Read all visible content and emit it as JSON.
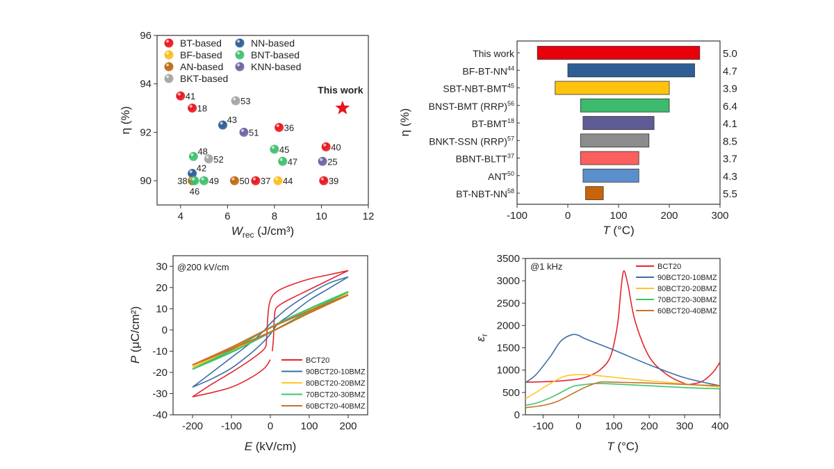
{
  "chart_data": [
    {
      "type": "scatter",
      "ylabel": "η (%)",
      "xlabel": {
        "symbol": "W",
        "sub": "rec",
        "unit": " (J/cm³)"
      },
      "xlim": [
        3,
        12
      ],
      "ylim": [
        89,
        96
      ],
      "xticks": [
        4,
        6,
        8,
        10,
        12
      ],
      "yticks": [
        90,
        92,
        94,
        96
      ],
      "legend_placement": "top-left",
      "series": [
        {
          "key": "BT",
          "name": "BT-based",
          "color": "#e8131b"
        },
        {
          "key": "NN",
          "name": "NN-based",
          "color": "#2c5a94"
        },
        {
          "key": "BF",
          "name": "BF-based",
          "color": "#fbbd1a"
        },
        {
          "key": "BNT",
          "name": "BNT-based",
          "color": "#3cbf6c"
        },
        {
          "key": "AN",
          "name": "AN-based",
          "color": "#c0650f"
        },
        {
          "key": "KNN",
          "name": "KNN-based",
          "color": "#6a62a0"
        },
        {
          "key": "BKT",
          "name": "BKT-based",
          "color": "#a3a3a3"
        }
      ],
      "points": [
        {
          "x": 4.0,
          "y": 93.5,
          "label": "41",
          "series": "BT",
          "label_pos": "right"
        },
        {
          "x": 4.5,
          "y": 93.0,
          "label": "18",
          "series": "BT",
          "label_pos": "right"
        },
        {
          "x": 6.35,
          "y": 93.3,
          "label": "53",
          "series": "BKT",
          "label_pos": "right"
        },
        {
          "x": 5.8,
          "y": 92.3,
          "label": "43",
          "series": "NN",
          "label_pos": "upper-right"
        },
        {
          "x": 6.7,
          "y": 92.0,
          "label": "51",
          "series": "KNN",
          "label_pos": "right"
        },
        {
          "x": 8.2,
          "y": 92.2,
          "label": "36",
          "series": "BT",
          "label_pos": "right"
        },
        {
          "x": 4.55,
          "y": 91.0,
          "label": "48",
          "series": "BNT",
          "label_pos": "upper-right"
        },
        {
          "x": 5.2,
          "y": 90.9,
          "label": "52",
          "series": "BKT",
          "label_pos": "right"
        },
        {
          "x": 8.0,
          "y": 91.3,
          "label": "45",
          "series": "BNT",
          "label_pos": "right"
        },
        {
          "x": 8.35,
          "y": 90.8,
          "label": "47",
          "series": "BNT",
          "label_pos": "right"
        },
        {
          "x": 10.2,
          "y": 91.4,
          "label": "40",
          "series": "BT",
          "label_pos": "right"
        },
        {
          "x": 10.05,
          "y": 90.8,
          "label": "25",
          "series": "KNN",
          "label_pos": "right"
        },
        {
          "x": 4.5,
          "y": 90.3,
          "label": "42",
          "series": "NN",
          "label_pos": "upper-right"
        },
        {
          "x": 4.5,
          "y": 90.0,
          "label": "38",
          "series": "AN",
          "label_pos": "left"
        },
        {
          "x": 4.6,
          "y": 90.0,
          "label": "46",
          "series": "BNT",
          "label_pos": "below"
        },
        {
          "x": 5.0,
          "y": 90.0,
          "label": "49",
          "series": "BNT",
          "label_pos": "right"
        },
        {
          "x": 6.3,
          "y": 90.0,
          "label": "50",
          "series": "AN",
          "label_pos": "right"
        },
        {
          "x": 7.2,
          "y": 90.0,
          "label": "37",
          "series": "BT",
          "label_pos": "right"
        },
        {
          "x": 8.15,
          "y": 90.0,
          "label": "44",
          "series": "BF",
          "label_pos": "right"
        },
        {
          "x": 10.1,
          "y": 90.0,
          "label": "39",
          "series": "BT",
          "label_pos": "right"
        }
      ],
      "highlight": {
        "x": 10.9,
        "y": 93.0,
        "label": "This work",
        "marker": "star",
        "color": "#e8131b"
      }
    },
    {
      "type": "bar",
      "orientation": "horizontal-range",
      "ylabel": "η (%)",
      "xlabel": {
        "symbol": "T",
        "unit": " (°C)"
      },
      "xlim": [
        -100,
        300
      ],
      "xticks": [
        -100,
        0,
        100,
        200,
        300
      ],
      "bars": [
        {
          "name": "This work",
          "ref": "",
          "start": -60,
          "end": 260,
          "value": "5.0",
          "color": "#e8000b"
        },
        {
          "name": "BF-BT-NN",
          "ref": "44",
          "start": 0,
          "end": 250,
          "value": "4.7",
          "color": "#2f5e94"
        },
        {
          "name": "SBT-NBT-BMT",
          "ref": "45",
          "start": -25,
          "end": 200,
          "value": "3.9",
          "color": "#ffc20e"
        },
        {
          "name": "BNST-BMT (RRP)",
          "ref": "56",
          "start": 25,
          "end": 200,
          "value": "6.4",
          "color": "#3cba6e"
        },
        {
          "name": "BT-BMT",
          "ref": "18",
          "start": 30,
          "end": 170,
          "value": "4.1",
          "color": "#5f5b94"
        },
        {
          "name": "BNKT-SSN (RRP)",
          "ref": "57",
          "start": 25,
          "end": 160,
          "value": "8.5",
          "color": "#8c8c8c"
        },
        {
          "name": "BBNT-BLTT",
          "ref": "37",
          "start": 25,
          "end": 140,
          "value": "3.7",
          "color": "#f9605f"
        },
        {
          "name": "ANT",
          "ref": "50",
          "start": 30,
          "end": 140,
          "value": "4.3",
          "color": "#5b8fcc"
        },
        {
          "name": "BT-NBT-NN",
          "ref": "58",
          "start": 35,
          "end": 70,
          "value": "5.5",
          "color": "#c8640a"
        }
      ]
    },
    {
      "type": "line",
      "annotation": "@200 kV/cm",
      "ylabel": {
        "symbol": "P",
        "unit": " (μC/cm²)"
      },
      "xlabel": {
        "symbol": "E",
        "unit": " (kV/cm)"
      },
      "xlim": [
        -250,
        250
      ],
      "ylim": [
        -40,
        35
      ],
      "xticks": [
        -200,
        -100,
        0,
        100,
        200
      ],
      "yticks": [
        -40,
        -30,
        -20,
        -10,
        0,
        10,
        20,
        30
      ],
      "legend_placement": "bottom-right",
      "series": [
        {
          "name": "BCT20",
          "color": "#e3242b",
          "branches": [
            [
              [
                200,
                28
              ],
              [
                150,
                26
              ],
              [
                100,
                24
              ],
              [
                50,
                21
              ],
              [
                20,
                18.5
              ],
              [
                5,
                16
              ],
              [
                -3,
                12
              ],
              [
                -7,
                5
              ],
              [
                -10,
                -5
              ],
              [
                -16,
                -9
              ],
              [
                -50,
                -14
              ],
              [
                -100,
                -20
              ],
              [
                -150,
                -25.5
              ],
              [
                -200,
                -31.5
              ]
            ],
            [
              [
                -200,
                -31.5
              ],
              [
                -150,
                -29.5
              ],
              [
                -100,
                -27
              ],
              [
                -50,
                -22.5
              ],
              [
                -15,
                -18
              ],
              [
                0,
                -14
              ]
            ],
            [
              [
                5,
                -10
              ],
              [
                8,
                -4
              ],
              [
                10,
                5
              ],
              [
                14,
                10
              ],
              [
                30,
                12.5
              ],
              [
                50,
                14.5
              ],
              [
                100,
                19
              ],
              [
                150,
                23.5
              ],
              [
                200,
                28
              ]
            ]
          ]
        },
        {
          "name": "90BCT20-10BMZ",
          "color": "#3a6ea5",
          "branches": [
            [
              [
                200,
                25
              ],
              [
                150,
                22
              ],
              [
                100,
                17
              ],
              [
                50,
                11
              ],
              [
                20,
                6.5
              ],
              [
                0,
                3
              ],
              [
                -20,
                -1
              ],
              [
                -50,
                -6
              ],
              [
                -100,
                -13
              ],
              [
                -150,
                -20
              ],
              [
                -200,
                -27
              ]
            ],
            [
              [
                -200,
                -27
              ],
              [
                -150,
                -23
              ],
              [
                -100,
                -18
              ],
              [
                -50,
                -11
              ],
              [
                -20,
                -6
              ],
              [
                0,
                -2
              ],
              [
                20,
                3
              ],
              [
                50,
                7
              ],
              [
                100,
                14
              ],
              [
                150,
                19.5
              ],
              [
                200,
                25
              ]
            ]
          ]
        },
        {
          "name": "80BCT20-20BMZ",
          "color": "#ffc425",
          "branches": [
            [
              [
                200,
                17.5
              ],
              [
                100,
                9.8
              ],
              [
                0,
                1.2
              ],
              [
                -100,
                -9
              ],
              [
                -200,
                -17.5
              ]
            ],
            [
              [
                -200,
                -17.5
              ],
              [
                -100,
                -10
              ],
              [
                0,
                -1.2
              ],
              [
                100,
                8.6
              ],
              [
                200,
                17.5
              ]
            ]
          ]
        },
        {
          "name": "70BCT20-30BMZ",
          "color": "#3cc46a",
          "branches": [
            [
              [
                200,
                18
              ],
              [
                100,
                10
              ],
              [
                0,
                1.2
              ],
              [
                -100,
                -9.5
              ],
              [
                -200,
                -18.5
              ]
            ],
            [
              [
                -200,
                -18.5
              ],
              [
                -100,
                -10.5
              ],
              [
                0,
                -1.2
              ],
              [
                100,
                8.8
              ],
              [
                200,
                18
              ]
            ]
          ]
        },
        {
          "name": "60BCT20-40BMZ",
          "color": "#c87028",
          "branches": [
            [
              [
                200,
                16.5
              ],
              [
                100,
                9
              ],
              [
                0,
                1
              ],
              [
                -100,
                -8.2
              ],
              [
                -200,
                -16.5
              ]
            ],
            [
              [
                -200,
                -16.5
              ],
              [
                -100,
                -9
              ],
              [
                0,
                -1
              ],
              [
                100,
                8
              ],
              [
                200,
                16.5
              ]
            ]
          ]
        }
      ]
    },
    {
      "type": "line",
      "annotation": "@1 kHz",
      "ylabel": {
        "symbol": "ε",
        "sub": "r"
      },
      "xlabel": {
        "symbol": "T",
        "unit": " (°C)"
      },
      "xlim": [
        -150,
        400
      ],
      "ylim": [
        0,
        3500
      ],
      "xticks": [
        -100,
        0,
        100,
        200,
        300,
        400
      ],
      "yticks": [
        0,
        500,
        1000,
        1500,
        2000,
        2500,
        3000,
        3500
      ],
      "legend_placement": "top-right",
      "series": [
        {
          "name": "BCT20",
          "color": "#e3242b",
          "points": [
            [
              -150,
              730
            ],
            [
              -100,
              740
            ],
            [
              -50,
              760
            ],
            [
              0,
              800
            ],
            [
              30,
              870
            ],
            [
              60,
              1000
            ],
            [
              90,
              1300
            ],
            [
              110,
              2000
            ],
            [
              120,
              2800
            ],
            [
              128,
              3220
            ],
            [
              140,
              2900
            ],
            [
              160,
              2100
            ],
            [
              200,
              1300
            ],
            [
              250,
              900
            ],
            [
              300,
              700
            ],
            [
              320,
              690
            ],
            [
              350,
              750
            ],
            [
              380,
              950
            ],
            [
              400,
              1180
            ]
          ]
        },
        {
          "name": "90BCT20-10BMZ",
          "color": "#3a6ea5",
          "points": [
            [
              -150,
              720
            ],
            [
              -120,
              900
            ],
            [
              -80,
              1300
            ],
            [
              -50,
              1650
            ],
            [
              -20,
              1790
            ],
            [
              0,
              1780
            ],
            [
              20,
              1700
            ],
            [
              100,
              1450
            ],
            [
              200,
              1120
            ],
            [
              300,
              830
            ],
            [
              400,
              650
            ]
          ]
        },
        {
          "name": "80BCT20-20BMZ",
          "color": "#ffc425",
          "points": [
            [
              -150,
              360
            ],
            [
              -120,
              500
            ],
            [
              -80,
              700
            ],
            [
              -40,
              860
            ],
            [
              0,
              900
            ],
            [
              40,
              890
            ],
            [
              100,
              840
            ],
            [
              200,
              760
            ],
            [
              300,
              690
            ],
            [
              400,
              620
            ]
          ]
        },
        {
          "name": "70BCT20-30BMZ",
          "color": "#3cc46a",
          "points": [
            [
              -150,
              210
            ],
            [
              -120,
              260
            ],
            [
              -80,
              380
            ],
            [
              -50,
              500
            ],
            [
              -20,
              620
            ],
            [
              0,
              660
            ],
            [
              50,
              700
            ],
            [
              100,
              690
            ],
            [
              200,
              650
            ],
            [
              300,
              610
            ],
            [
              400,
              580
            ]
          ]
        },
        {
          "name": "60BCT20-40BMZ",
          "color": "#c87028",
          "points": [
            [
              -150,
              160
            ],
            [
              -100,
              210
            ],
            [
              -60,
              300
            ],
            [
              -20,
              460
            ],
            [
              20,
              620
            ],
            [
              60,
              730
            ],
            [
              100,
              730
            ],
            [
              200,
              710
            ],
            [
              300,
              680
            ],
            [
              400,
              650
            ]
          ]
        }
      ]
    }
  ]
}
